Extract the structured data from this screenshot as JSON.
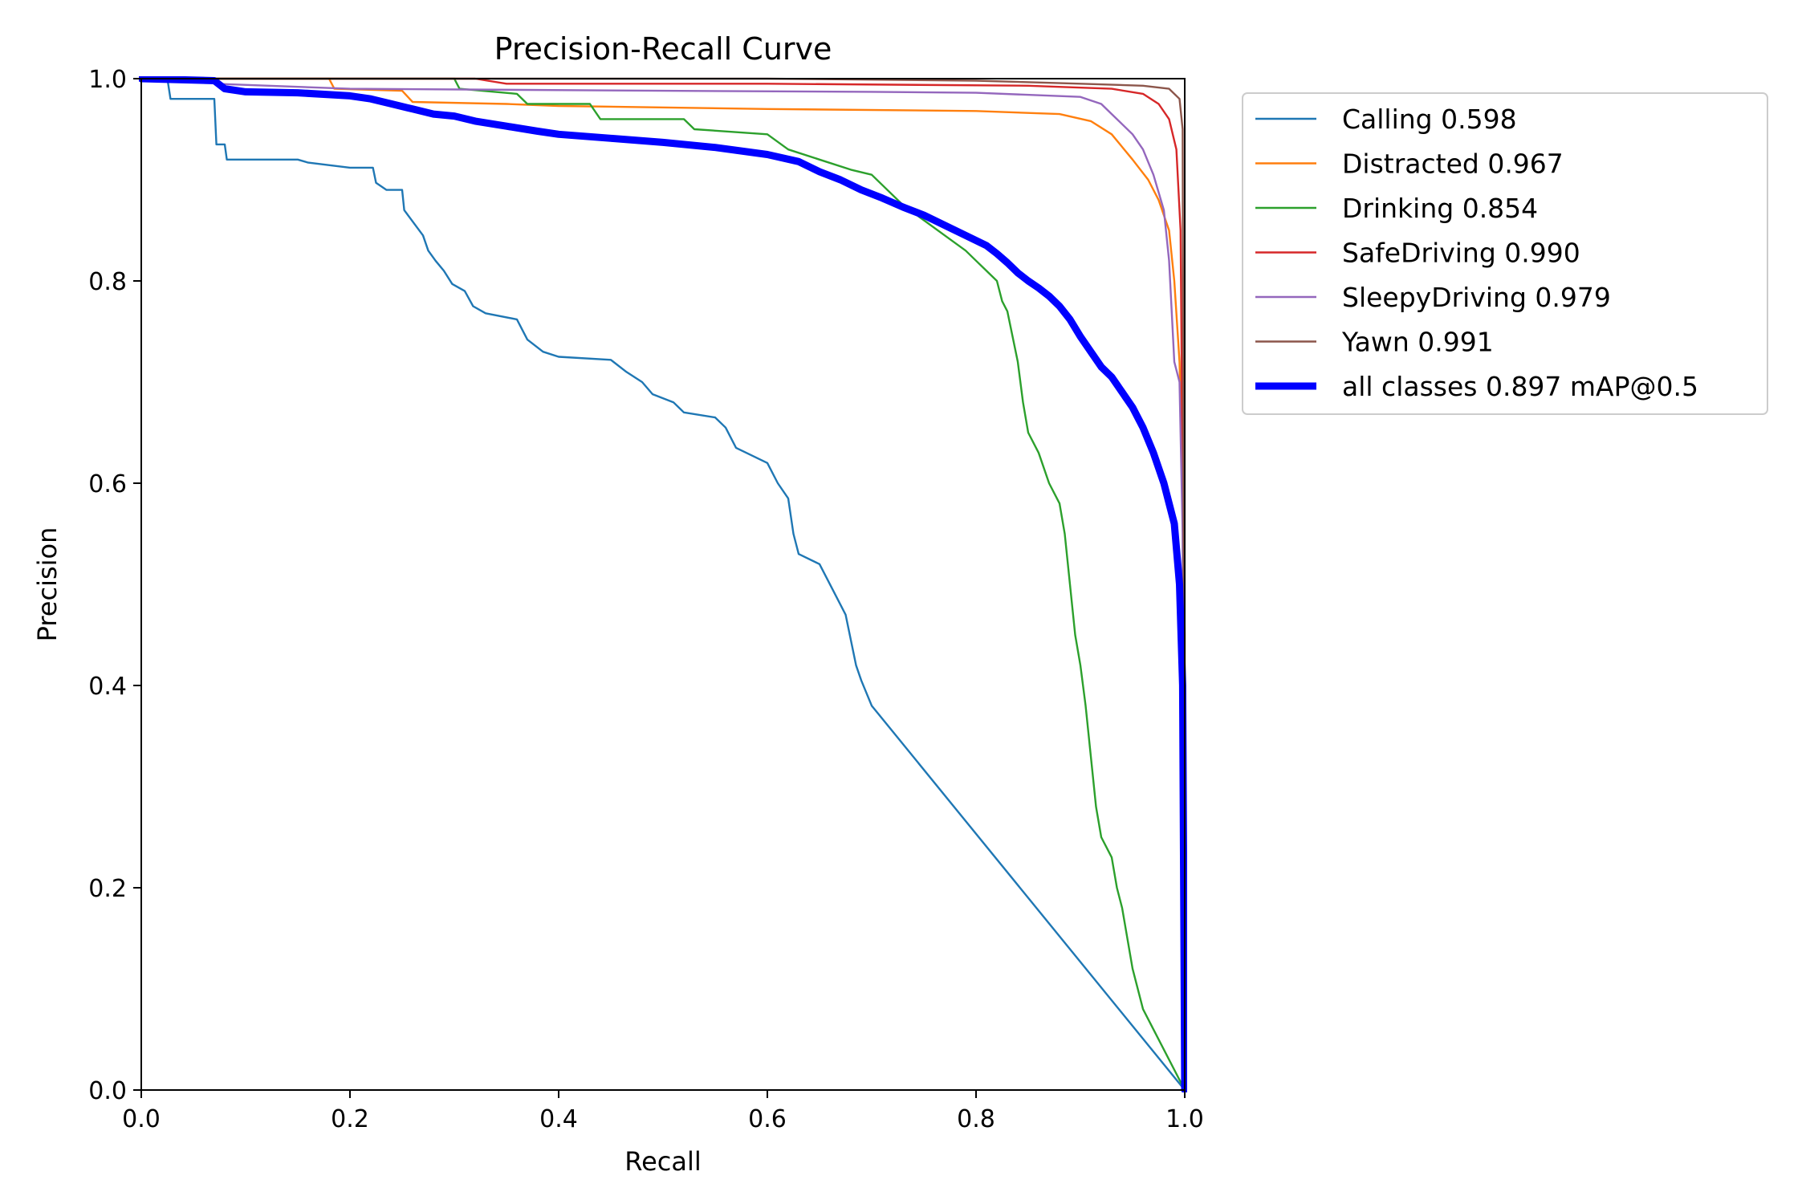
{
  "chart_data": {
    "type": "line",
    "title": "Precision-Recall Curve",
    "xlabel": "Recall",
    "ylabel": "Precision",
    "xlim": [
      0,
      1
    ],
    "ylim": [
      0,
      1
    ],
    "xticks": [
      "0.0",
      "0.2",
      "0.4",
      "0.6",
      "0.8",
      "1.0"
    ],
    "yticks": [
      "0.0",
      "0.2",
      "0.4",
      "0.6",
      "0.8",
      "1.0"
    ],
    "grid": false,
    "legend_position": "outside-right-top",
    "series": [
      {
        "name": "Calling 0.598",
        "color": "#1f77b4",
        "points": [
          [
            0,
            1.0
          ],
          [
            0.025,
            1.0
          ],
          [
            0.028,
            0.98
          ],
          [
            0.07,
            0.98
          ],
          [
            0.072,
            0.935
          ],
          [
            0.08,
            0.935
          ],
          [
            0.082,
            0.92
          ],
          [
            0.15,
            0.92
          ],
          [
            0.16,
            0.917
          ],
          [
            0.2,
            0.912
          ],
          [
            0.222,
            0.912
          ],
          [
            0.225,
            0.897
          ],
          [
            0.235,
            0.89
          ],
          [
            0.25,
            0.89
          ],
          [
            0.252,
            0.87
          ],
          [
            0.27,
            0.845
          ],
          [
            0.275,
            0.83
          ],
          [
            0.282,
            0.82
          ],
          [
            0.29,
            0.81
          ],
          [
            0.298,
            0.797
          ],
          [
            0.31,
            0.79
          ],
          [
            0.318,
            0.775
          ],
          [
            0.33,
            0.768
          ],
          [
            0.36,
            0.762
          ],
          [
            0.37,
            0.742
          ],
          [
            0.385,
            0.73
          ],
          [
            0.4,
            0.725
          ],
          [
            0.45,
            0.722
          ],
          [
            0.465,
            0.71
          ],
          [
            0.48,
            0.7
          ],
          [
            0.49,
            0.688
          ],
          [
            0.51,
            0.68
          ],
          [
            0.52,
            0.67
          ],
          [
            0.55,
            0.665
          ],
          [
            0.56,
            0.655
          ],
          [
            0.57,
            0.635
          ],
          [
            0.6,
            0.62
          ],
          [
            0.61,
            0.6
          ],
          [
            0.62,
            0.585
          ],
          [
            0.625,
            0.55
          ],
          [
            0.63,
            0.53
          ],
          [
            0.65,
            0.52
          ],
          [
            0.665,
            0.49
          ],
          [
            0.675,
            0.47
          ],
          [
            0.68,
            0.445
          ],
          [
            0.685,
            0.42
          ],
          [
            0.69,
            0.405
          ],
          [
            0.7,
            0.38
          ],
          [
            1.0,
            0.0
          ]
        ]
      },
      {
        "name": "Distracted 0.967",
        "color": "#ff7f0e",
        "points": [
          [
            0,
            1.0
          ],
          [
            0.18,
            1.0
          ],
          [
            0.185,
            0.99
          ],
          [
            0.25,
            0.988
          ],
          [
            0.26,
            0.977
          ],
          [
            0.35,
            0.975
          ],
          [
            0.4,
            0.973
          ],
          [
            0.6,
            0.97
          ],
          [
            0.8,
            0.968
          ],
          [
            0.88,
            0.965
          ],
          [
            0.91,
            0.958
          ],
          [
            0.93,
            0.945
          ],
          [
            0.95,
            0.92
          ],
          [
            0.965,
            0.9
          ],
          [
            0.975,
            0.88
          ],
          [
            0.985,
            0.85
          ],
          [
            0.99,
            0.8
          ],
          [
            0.995,
            0.72
          ],
          [
            0.998,
            0.6
          ],
          [
            1.0,
            0.45
          ],
          [
            1.0,
            0.0
          ]
        ]
      },
      {
        "name": "Drinking 0.854",
        "color": "#2ca02c",
        "points": [
          [
            0,
            1.0
          ],
          [
            0.3,
            1.0
          ],
          [
            0.305,
            0.99
          ],
          [
            0.36,
            0.985
          ],
          [
            0.37,
            0.975
          ],
          [
            0.43,
            0.975
          ],
          [
            0.44,
            0.96
          ],
          [
            0.52,
            0.96
          ],
          [
            0.53,
            0.95
          ],
          [
            0.6,
            0.945
          ],
          [
            0.62,
            0.93
          ],
          [
            0.65,
            0.92
          ],
          [
            0.68,
            0.91
          ],
          [
            0.7,
            0.905
          ],
          [
            0.71,
            0.895
          ],
          [
            0.73,
            0.875
          ],
          [
            0.75,
            0.86
          ],
          [
            0.77,
            0.845
          ],
          [
            0.79,
            0.83
          ],
          [
            0.8,
            0.82
          ],
          [
            0.81,
            0.81
          ],
          [
            0.82,
            0.8
          ],
          [
            0.825,
            0.78
          ],
          [
            0.83,
            0.77
          ],
          [
            0.84,
            0.72
          ],
          [
            0.845,
            0.68
          ],
          [
            0.85,
            0.65
          ],
          [
            0.86,
            0.63
          ],
          [
            0.87,
            0.6
          ],
          [
            0.88,
            0.58
          ],
          [
            0.885,
            0.55
          ],
          [
            0.89,
            0.5
          ],
          [
            0.895,
            0.45
          ],
          [
            0.9,
            0.42
          ],
          [
            0.905,
            0.38
          ],
          [
            0.91,
            0.33
          ],
          [
            0.915,
            0.28
          ],
          [
            0.92,
            0.25
          ],
          [
            0.93,
            0.23
          ],
          [
            0.935,
            0.2
          ],
          [
            0.94,
            0.18
          ],
          [
            0.95,
            0.12
          ],
          [
            0.96,
            0.08
          ],
          [
            0.97,
            0.06
          ],
          [
            1.0,
            0.0
          ]
        ]
      },
      {
        "name": "SafeDriving 0.990",
        "color": "#d62728",
        "points": [
          [
            0,
            1.0
          ],
          [
            0.32,
            1.0
          ],
          [
            0.35,
            0.995
          ],
          [
            0.6,
            0.995
          ],
          [
            0.85,
            0.993
          ],
          [
            0.93,
            0.99
          ],
          [
            0.96,
            0.985
          ],
          [
            0.975,
            0.975
          ],
          [
            0.985,
            0.96
          ],
          [
            0.992,
            0.93
          ],
          [
            0.996,
            0.85
          ],
          [
            0.998,
            0.6
          ],
          [
            1.0,
            0.0
          ]
        ]
      },
      {
        "name": "SleepyDriving 0.979",
        "color": "#9467bd",
        "points": [
          [
            0,
            1.0
          ],
          [
            0.06,
            1.0
          ],
          [
            0.07,
            0.995
          ],
          [
            0.2,
            0.99
          ],
          [
            0.5,
            0.988
          ],
          [
            0.7,
            0.987
          ],
          [
            0.8,
            0.986
          ],
          [
            0.9,
            0.982
          ],
          [
            0.92,
            0.975
          ],
          [
            0.93,
            0.965
          ],
          [
            0.94,
            0.955
          ],
          [
            0.95,
            0.945
          ],
          [
            0.96,
            0.93
          ],
          [
            0.97,
            0.905
          ],
          [
            0.98,
            0.87
          ],
          [
            0.985,
            0.82
          ],
          [
            0.99,
            0.72
          ],
          [
            0.995,
            0.7
          ],
          [
            0.998,
            0.55
          ],
          [
            1.0,
            0.0
          ]
        ]
      },
      {
        "name": "Yawn 0.991",
        "color": "#8c564b",
        "points": [
          [
            0,
            1.0
          ],
          [
            0.6,
            1.0
          ],
          [
            0.8,
            0.998
          ],
          [
            0.9,
            0.995
          ],
          [
            0.96,
            0.993
          ],
          [
            0.985,
            0.99
          ],
          [
            0.995,
            0.98
          ],
          [
            0.998,
            0.95
          ],
          [
            1.0,
            0.0
          ]
        ]
      },
      {
        "name": "all classes 0.897 mAP@0.5",
        "color": "#0000ff",
        "thick": true,
        "points": [
          [
            0,
            1.0
          ],
          [
            0.07,
            0.998
          ],
          [
            0.08,
            0.99
          ],
          [
            0.1,
            0.987
          ],
          [
            0.15,
            0.986
          ],
          [
            0.2,
            0.983
          ],
          [
            0.22,
            0.98
          ],
          [
            0.24,
            0.975
          ],
          [
            0.26,
            0.97
          ],
          [
            0.28,
            0.965
          ],
          [
            0.3,
            0.963
          ],
          [
            0.32,
            0.958
          ],
          [
            0.35,
            0.953
          ],
          [
            0.38,
            0.948
          ],
          [
            0.4,
            0.945
          ],
          [
            0.45,
            0.941
          ],
          [
            0.5,
            0.937
          ],
          [
            0.55,
            0.932
          ],
          [
            0.6,
            0.925
          ],
          [
            0.63,
            0.918
          ],
          [
            0.65,
            0.908
          ],
          [
            0.67,
            0.9
          ],
          [
            0.69,
            0.89
          ],
          [
            0.71,
            0.882
          ],
          [
            0.73,
            0.873
          ],
          [
            0.75,
            0.865
          ],
          [
            0.77,
            0.855
          ],
          [
            0.79,
            0.845
          ],
          [
            0.81,
            0.835
          ],
          [
            0.82,
            0.827
          ],
          [
            0.83,
            0.818
          ],
          [
            0.84,
            0.808
          ],
          [
            0.85,
            0.8
          ],
          [
            0.86,
            0.793
          ],
          [
            0.87,
            0.785
          ],
          [
            0.88,
            0.775
          ],
          [
            0.89,
            0.762
          ],
          [
            0.9,
            0.745
          ],
          [
            0.91,
            0.73
          ],
          [
            0.92,
            0.715
          ],
          [
            0.93,
            0.705
          ],
          [
            0.94,
            0.69
          ],
          [
            0.95,
            0.675
          ],
          [
            0.96,
            0.655
          ],
          [
            0.97,
            0.63
          ],
          [
            0.98,
            0.6
          ],
          [
            0.99,
            0.56
          ],
          [
            0.995,
            0.5
          ],
          [
            0.998,
            0.4
          ],
          [
            1.0,
            0.0
          ]
        ]
      }
    ]
  }
}
